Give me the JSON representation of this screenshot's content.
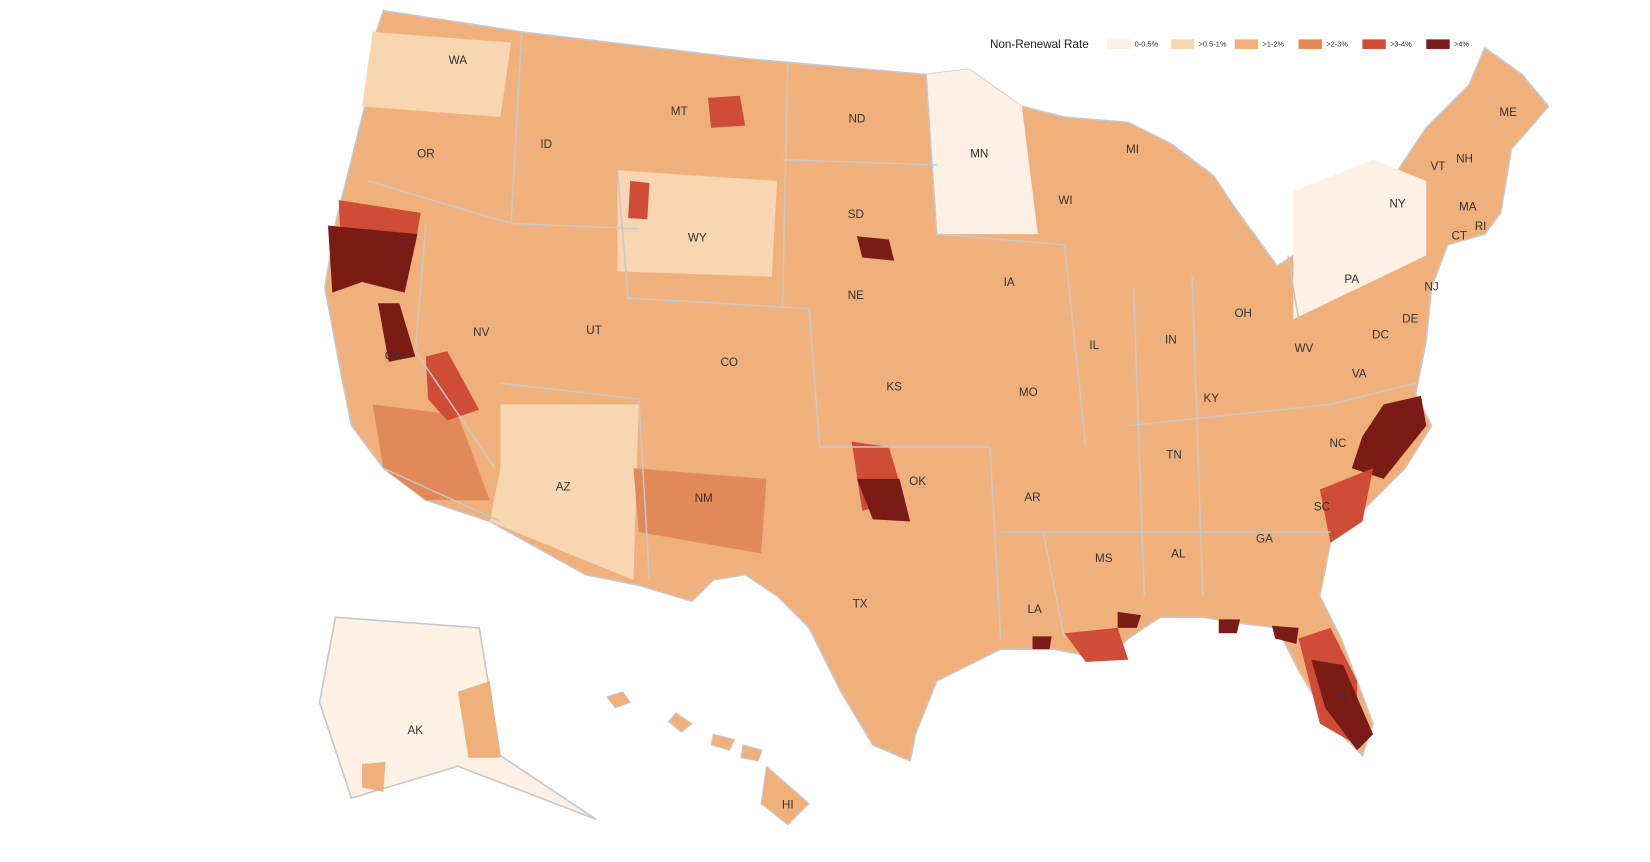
{
  "legend": {
    "title": "Non-Renewal Rate",
    "items": [
      {
        "label": "0-0.5%",
        "color": "#fdf0e4"
      },
      {
        "label": ">0.5-1%",
        "color": "#f8d6b1"
      },
      {
        "label": ">1-2%",
        "color": "#f0b07c"
      },
      {
        "label": ">2-3%",
        "color": "#e2895a"
      },
      {
        "label": ">3-4%",
        "color": "#cf4c36"
      },
      {
        "label": ">4%",
        "color": "#7a1b15"
      }
    ]
  },
  "states": [
    "WA",
    "OR",
    "ID",
    "MT",
    "ND",
    "MN",
    "SD",
    "WY",
    "NV",
    "UT",
    "CO",
    "NE",
    "IA",
    "WI",
    "MI",
    "IL",
    "IN",
    "OH",
    "PA",
    "NY",
    "VT",
    "NH",
    "ME",
    "MA",
    "RI",
    "CT",
    "NJ",
    "DE",
    "DC",
    "WV",
    "VA",
    "KY",
    "MO",
    "KS",
    "CA",
    "AZ",
    "NM",
    "OK",
    "TX",
    "AR",
    "TN",
    "NC",
    "SC",
    "GA",
    "AL",
    "MS",
    "LA",
    "FL",
    "AK",
    "HI"
  ]
}
